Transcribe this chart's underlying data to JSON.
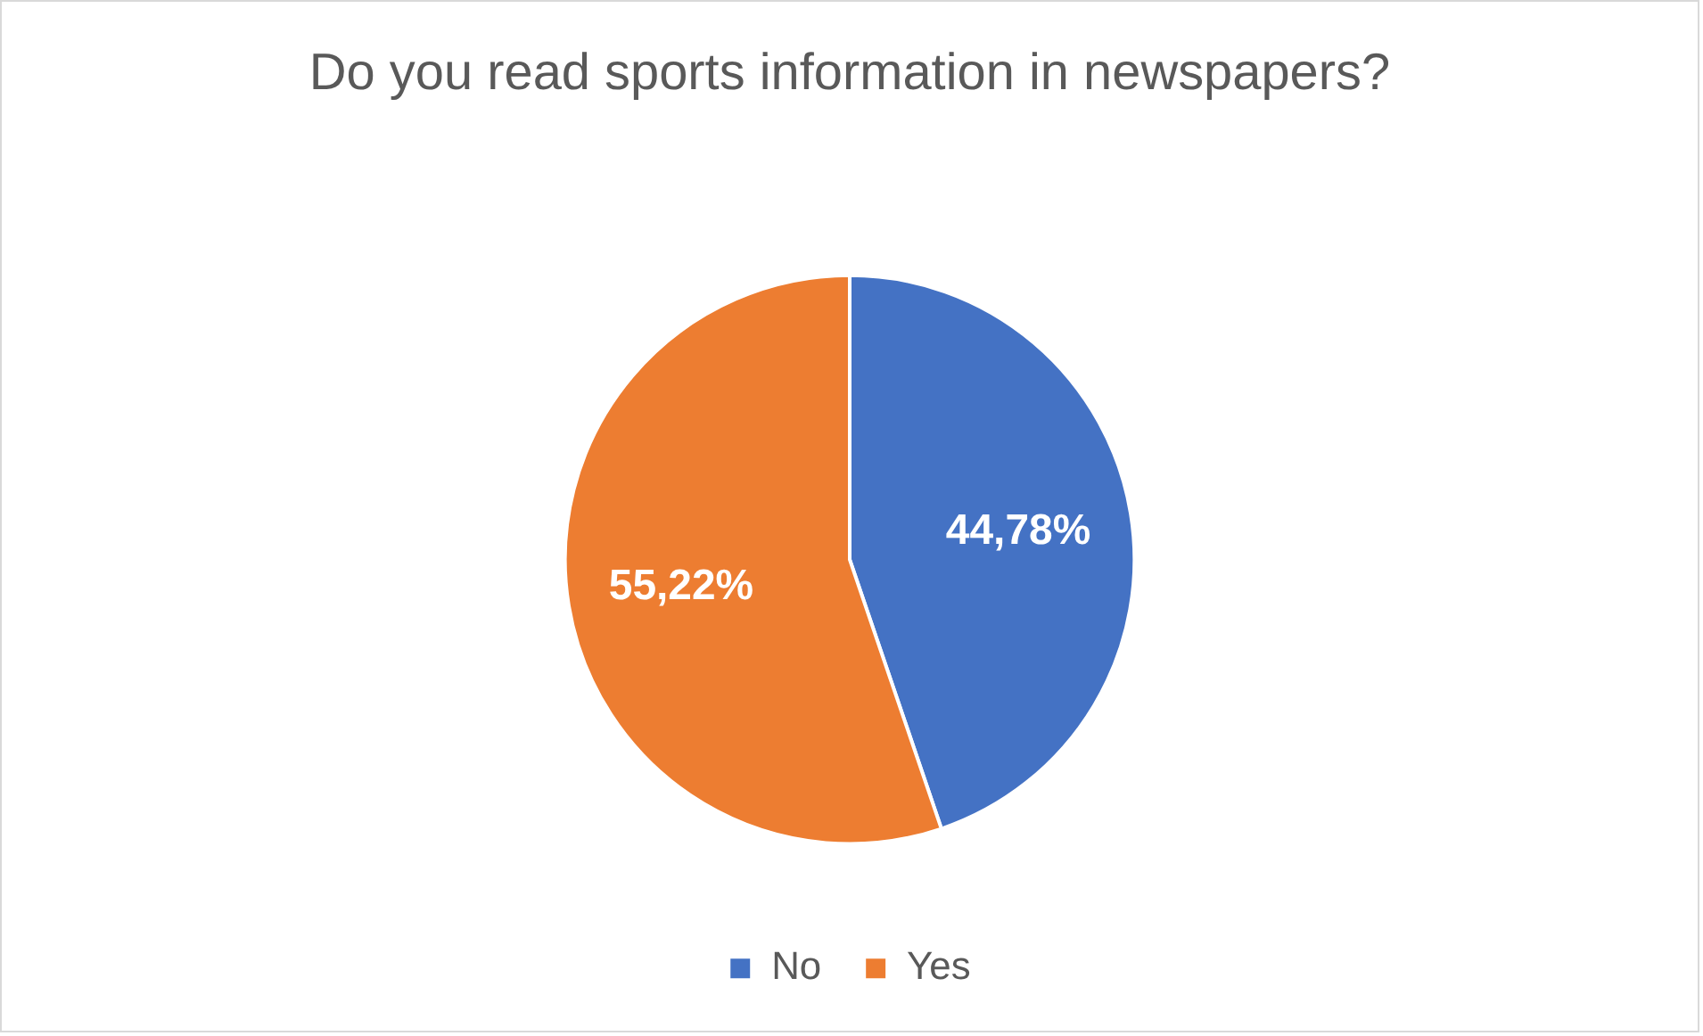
{
  "chart_data": {
    "type": "pie",
    "title": "Do you read sports information in newspapers?",
    "categories": [
      "No",
      "Yes"
    ],
    "values": [
      44.78,
      55.22
    ],
    "colors": [
      "#4472c4",
      "#ed7d31"
    ],
    "value_labels": [
      "44,78%",
      "55,22%"
    ],
    "legend": "bottom"
  }
}
